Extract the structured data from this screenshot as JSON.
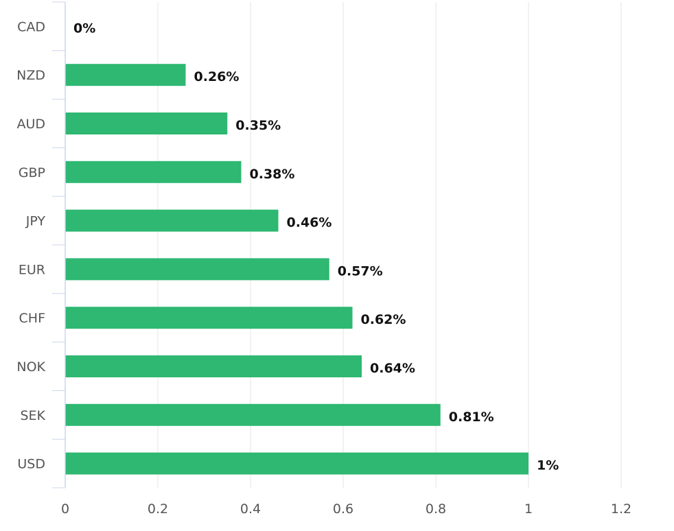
{
  "chart_data": {
    "type": "bar",
    "orientation": "horizontal",
    "categories": [
      "CAD",
      "NZD",
      "AUD",
      "GBP",
      "JPY",
      "EUR",
      "CHF",
      "NOK",
      "SEK",
      "USD"
    ],
    "values": [
      0,
      0.26,
      0.35,
      0.38,
      0.46,
      0.57,
      0.62,
      0.64,
      0.81,
      1
    ],
    "data_labels": [
      "0%",
      "0.26%",
      "0.35%",
      "0.38%",
      "0.46%",
      "0.57%",
      "0.62%",
      "0.64%",
      "0.81%",
      "1%"
    ],
    "title": "",
    "xlabel": "",
    "ylabel": "",
    "xlim": [
      0,
      1.2
    ],
    "xticks": [
      "0",
      "0.2",
      "0.4",
      "0.6",
      "0.8",
      "1",
      "1.2"
    ],
    "grid": true,
    "legend": "none",
    "bar_color": "#2eb872"
  }
}
